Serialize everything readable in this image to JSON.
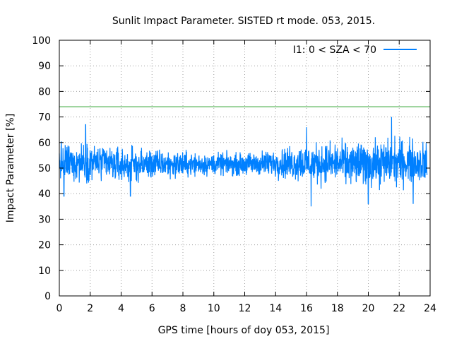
{
  "chart_data": {
    "type": "line",
    "title": "Sunlit Impact Parameter. SISTED rt mode. 053, 2015.",
    "xlabel": "GPS time [hours of doy 053, 2015]",
    "ylabel": "Impact Parameter [%]",
    "xlim": [
      0,
      24
    ],
    "ylim": [
      0,
      100
    ],
    "xticks": [
      "0",
      "2",
      "4",
      "6",
      "8",
      "10",
      "12",
      "14",
      "16",
      "18",
      "20",
      "22",
      "24"
    ],
    "yticks": [
      "0",
      "10",
      "20",
      "30",
      "40",
      "50",
      "60",
      "70",
      "80",
      "90",
      "100"
    ],
    "grid": true,
    "legend_position": "top-right",
    "series": [
      {
        "name": "I1: 0 < SZA < 70",
        "color": "#0080ff",
        "x_range": [
          0,
          23.8
        ],
        "mean": 52,
        "band": [
          {
            "x": 0,
            "low": 42,
            "high": 62
          },
          {
            "x": 2,
            "low": 43,
            "high": 62
          },
          {
            "x": 4,
            "low": 42,
            "high": 60
          },
          {
            "x": 6,
            "low": 44,
            "high": 59
          },
          {
            "x": 8,
            "low": 45,
            "high": 58
          },
          {
            "x": 10,
            "low": 46,
            "high": 57
          },
          {
            "x": 12,
            "low": 46,
            "high": 57
          },
          {
            "x": 14,
            "low": 45,
            "high": 59
          },
          {
            "x": 16,
            "low": 42,
            "high": 62
          },
          {
            "x": 18,
            "low": 42,
            "high": 62
          },
          {
            "x": 20,
            "low": 40,
            "high": 63
          },
          {
            "x": 22,
            "low": 41,
            "high": 64
          },
          {
            "x": 23.8,
            "low": 42,
            "high": 62
          }
        ],
        "extremes": [
          {
            "x": 0.3,
            "value": 39
          },
          {
            "x": 1.7,
            "value": 67
          },
          {
            "x": 4.6,
            "value": 39
          },
          {
            "x": 16.0,
            "value": 66
          },
          {
            "x": 16.3,
            "value": 35
          },
          {
            "x": 20.0,
            "value": 36
          },
          {
            "x": 21.5,
            "value": 70
          },
          {
            "x": 22.9,
            "value": 36
          }
        ]
      },
      {
        "name": "",
        "color": "#2ca02c",
        "threshold": 74
      }
    ]
  }
}
